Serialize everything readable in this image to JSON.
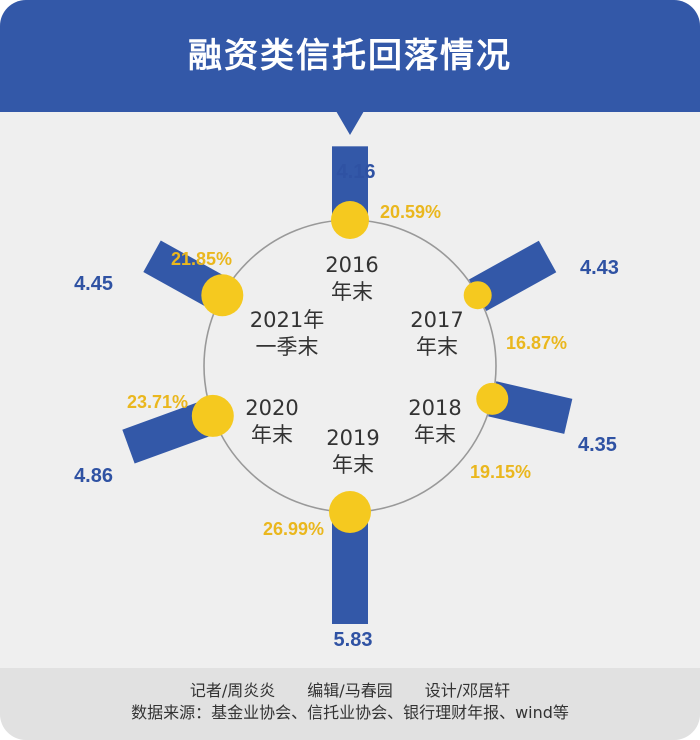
{
  "title": "融资类信托回落情况",
  "credits": "记者/周炎炎　　编辑/马春园　　设计/邓居轩",
  "source": "数据来源：基金业协会、信托业协会、银行理财年报、wind等",
  "colors": {
    "header": "#3358a8",
    "bar": "#3358a8",
    "bubble": "#f5c91f",
    "value_text": "#2f52a3",
    "percent_text": "#eab71e",
    "circle": "#999999"
  },
  "chart_data": {
    "type": "bar",
    "layout": "radial",
    "categories": [
      "2016年末",
      "2017年末",
      "2018年末",
      "2019年末",
      "2020年末",
      "2021年一季末"
    ],
    "category_labels": [
      [
        "2016",
        "年末"
      ],
      [
        "2017",
        "年末"
      ],
      [
        "2018",
        "年末"
      ],
      [
        "2019",
        "年末"
      ],
      [
        "2020",
        "年末"
      ],
      [
        "2021年",
        "一季末"
      ]
    ],
    "series": [
      {
        "values": [
          4.16,
          4.43,
          4.35,
          5.83,
          4.86,
          4.45
        ]
      },
      {
        "values": [
          20.59,
          16.87,
          19.15,
          26.99,
          23.71,
          21.85
        ],
        "unit": "%"
      }
    ],
    "value_labels": [
      "4.16",
      "4.43",
      "4.35",
      "5.83",
      "4.86",
      "4.45"
    ],
    "percent_labels": [
      "20.59%",
      "16.87%",
      "19.15%",
      "26.99%",
      "23.71%",
      "21.85%"
    ]
  }
}
